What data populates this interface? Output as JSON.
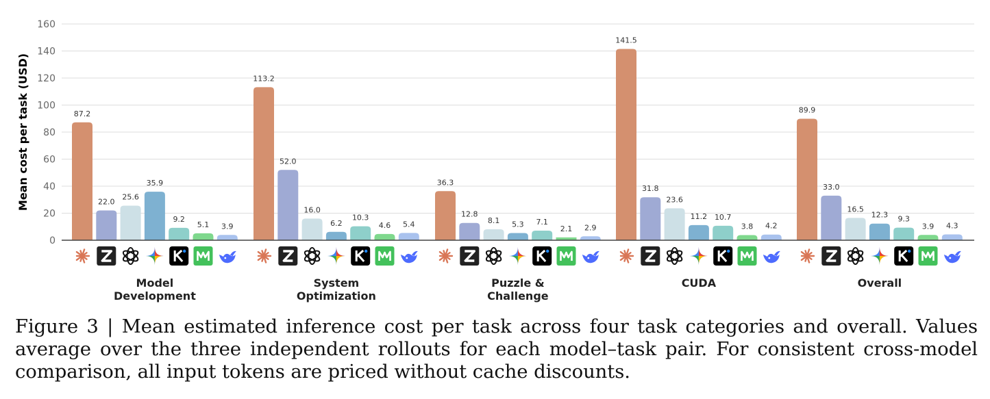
{
  "chart_data": {
    "type": "bar",
    "ylabel": "Mean cost per task (USD)",
    "ylim": [
      0,
      160
    ],
    "yticks": [
      0,
      20,
      40,
      60,
      80,
      100,
      120,
      140,
      160
    ],
    "grid": true,
    "categories": [
      "Model\nDevelopment",
      "System\nOptimization",
      "Puzzle &\nChallenge",
      "CUDA",
      "Overall"
    ],
    "series": [
      {
        "icon": "claude-icon",
        "color": "#d4906f",
        "values": [
          87.2,
          113.2,
          36.3,
          141.5,
          89.9
        ]
      },
      {
        "icon": "zhipu-icon",
        "color": "#9faad4",
        "values": [
          22.0,
          52.0,
          12.8,
          31.8,
          33.0
        ]
      },
      {
        "icon": "openai-icon",
        "color": "#cde0e6",
        "values": [
          25.6,
          16.0,
          8.1,
          23.6,
          16.5
        ]
      },
      {
        "icon": "gemini-icon",
        "color": "#7eb1d1",
        "values": [
          35.9,
          6.2,
          5.3,
          11.2,
          12.3
        ]
      },
      {
        "icon": "kimi-icon",
        "color": "#8ecfca",
        "values": [
          9.2,
          10.3,
          7.1,
          10.7,
          9.3
        ]
      },
      {
        "icon": "minimax-icon",
        "color": "#7fd88d",
        "values": [
          5.1,
          4.6,
          2.1,
          3.8,
          3.9
        ]
      },
      {
        "icon": "deepseek-icon",
        "color": "#a9c2ee",
        "values": [
          3.9,
          5.4,
          2.9,
          4.2,
          4.3
        ]
      }
    ]
  },
  "caption": "Figure 3 | Mean estimated inference cost per task across four task categories and overall. Values average over the three independent rollouts for each model–task pair. For consistent cross-model comparison, all input tokens are priced without cache discounts."
}
